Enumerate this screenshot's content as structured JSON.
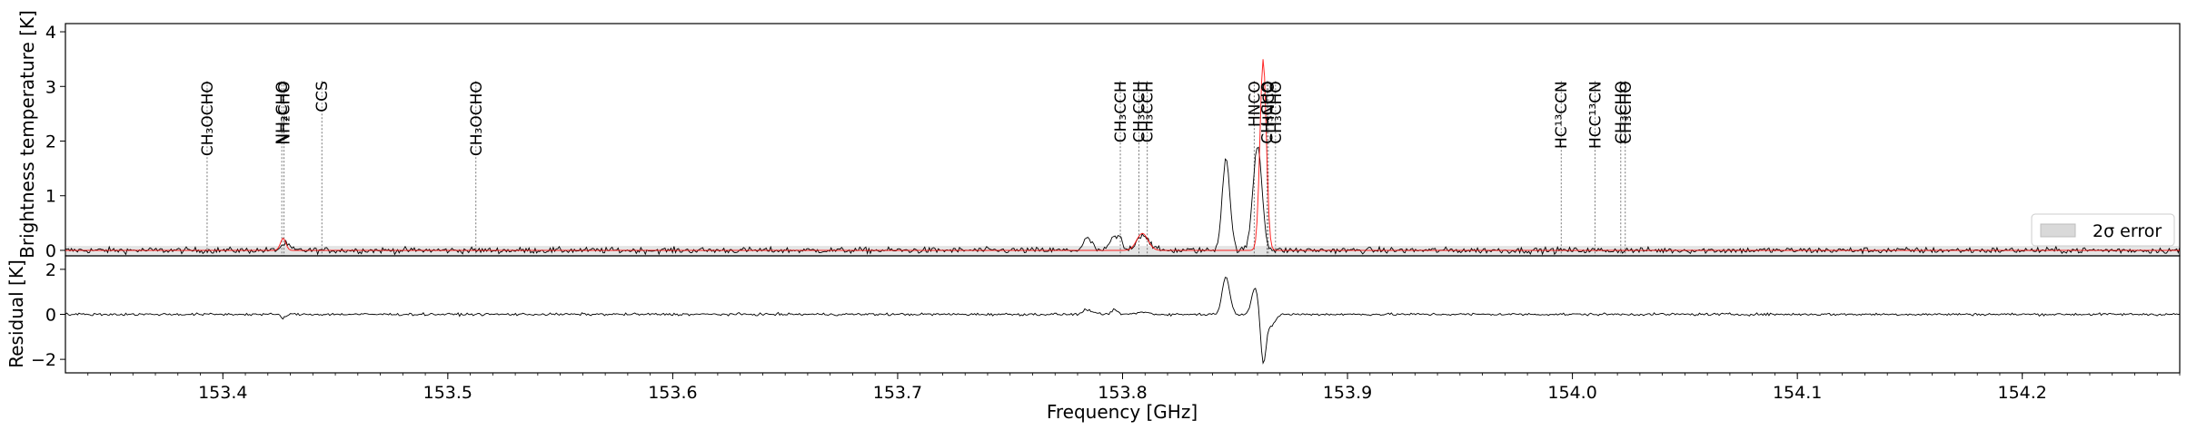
{
  "chart_data": [
    {
      "type": "line",
      "panel": "spectrum",
      "ylabel": "Brightness temperature [K]",
      "xlim": [
        153.33,
        154.27
      ],
      "ylim": [
        -0.1,
        4.15
      ],
      "yticks": [
        0,
        1,
        2,
        3,
        4
      ],
      "grid": false,
      "legend": {
        "placement": "lower-right",
        "entries": [
          {
            "label": "2σ error",
            "style": "shaded-band",
            "color": "#d9d9d9"
          }
        ]
      },
      "series": [
        {
          "name": "",
          "color": "#000000",
          "role": "observed",
          "base": 0.0,
          "noise": 0.04,
          "peaks": [
            {
              "x": 153.4277,
              "amp": 0.12,
              "width": 0.0018
            },
            {
              "x": 153.7845,
              "amp": 0.22,
              "width": 0.0018
            },
            {
              "x": 153.7955,
              "amp": 0.22,
              "width": 0.0013
            },
            {
              "x": 153.7985,
              "amp": 0.25,
              "width": 0.0012
            },
            {
              "x": 153.809,
              "amp": 0.29,
              "width": 0.0028
            },
            {
              "x": 153.846,
              "amp": 1.7,
              "width": 0.0017
            },
            {
              "x": 153.86,
              "amp": 1.92,
              "width": 0.002
            }
          ]
        },
        {
          "name": "",
          "color": "#ff0000",
          "role": "model",
          "base": 0.0,
          "noise": 0.0,
          "peaks": [
            {
              "x": 153.4268,
              "amp": 0.22,
              "width": 0.0012
            },
            {
              "x": 153.8088,
              "amp": 0.31,
              "width": 0.0025
            },
            {
              "x": 153.8625,
              "amp": 3.5,
              "width": 0.0014
            }
          ]
        }
      ],
      "error_band": {
        "label": "2σ error",
        "half_width": 0.08
      },
      "line_markers": [
        {
          "x": 153.393,
          "label": "CH₃OCHO"
        },
        {
          "x": 153.4262,
          "label": "NH₂CHO"
        },
        {
          "x": 153.4272,
          "label": "NH₂CHO"
        },
        {
          "x": 153.444,
          "label": "CCS"
        },
        {
          "x": 153.5125,
          "label": "CH₃OCHO"
        },
        {
          "x": 153.799,
          "label": "CH₃CCH"
        },
        {
          "x": 153.8073,
          "label": "CH₃CCH"
        },
        {
          "x": 153.811,
          "label": "CH₃CCH"
        },
        {
          "x": 153.8585,
          "label": "HNCO"
        },
        {
          "x": 153.8648,
          "label": "HNCO"
        },
        {
          "x": 153.8642,
          "label": "CH₃CHO"
        },
        {
          "x": 153.868,
          "label": "CH₃CHO"
        },
        {
          "x": 153.995,
          "label": "HC¹³CCN"
        },
        {
          "x": 154.01,
          "label": "HCC¹³CN"
        },
        {
          "x": 154.0215,
          "label": "CH₃CHO"
        },
        {
          "x": 154.0235,
          "label": "CH₃CHO"
        }
      ]
    },
    {
      "type": "line",
      "panel": "residual",
      "xlabel": "Frequency [GHz]",
      "ylabel": "Residual [K]",
      "xlim": [
        153.33,
        154.27
      ],
      "ylim": [
        -2.6,
        2.6
      ],
      "yticks": [
        -2,
        0,
        2
      ],
      "xticks": [
        153.4,
        153.5,
        153.6,
        153.7,
        153.8,
        153.9,
        154.0,
        154.1,
        154.2
      ],
      "xtick_labels": [
        "153.4",
        "153.5",
        "153.6",
        "153.7",
        "153.8",
        "153.9",
        "154.0",
        "154.1",
        "154.2"
      ],
      "grid": false,
      "series": [
        {
          "name": "",
          "color": "#000000",
          "role": "residual",
          "base": 0.0,
          "noise": 0.04,
          "peaks": [
            {
              "x": 153.4268,
              "amp": -0.15,
              "width": 0.0012
            },
            {
              "x": 153.7845,
              "amp": 0.22,
              "width": 0.0018
            },
            {
              "x": 153.7965,
              "amp": 0.18,
              "width": 0.0015
            },
            {
              "x": 153.809,
              "amp": 0.1,
              "width": 0.0025
            },
            {
              "x": 153.846,
              "amp": 1.65,
              "width": 0.0017
            },
            {
              "x": 153.859,
              "amp": 1.2,
              "width": 0.0016
            },
            {
              "x": 153.8625,
              "amp": -2.25,
              "width": 0.0012
            },
            {
              "x": 153.866,
              "amp": -0.5,
              "width": 0.0018
            }
          ]
        }
      ]
    }
  ]
}
